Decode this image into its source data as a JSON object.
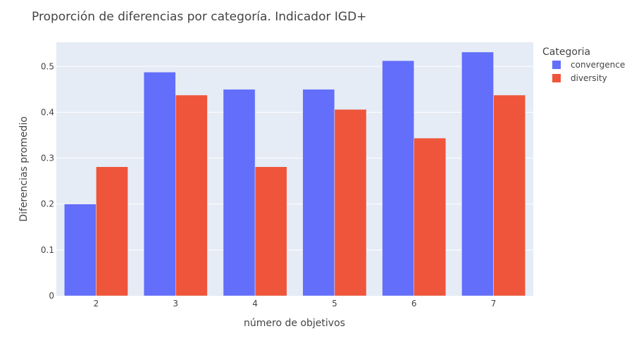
{
  "chart_data": {
    "type": "bar",
    "title": "Proporción de diferencias por categoría. Indicador IGD+",
    "xlabel": "número de objetivos",
    "ylabel": "Diferencias promedio",
    "categories": [
      "2",
      "3",
      "4",
      "5",
      "6",
      "7"
    ],
    "series": [
      {
        "name": "convergence",
        "color": "#636efa",
        "values": [
          0.2,
          0.4875,
          0.45,
          0.45,
          0.5125,
          0.53125
        ]
      },
      {
        "name": "diversity",
        "color": "#ef553b",
        "values": [
          0.28125,
          0.4375,
          0.28125,
          0.40625,
          0.34375,
          0.4375
        ]
      }
    ],
    "ylim": [
      0,
      0.5526
    ],
    "yticks": [
      0,
      0.1,
      0.2,
      0.3,
      0.4,
      0.5
    ],
    "ytick_labels": [
      "0",
      "0.1",
      "0.2",
      "0.3",
      "0.4",
      "0.5"
    ],
    "grid": true,
    "plot_background": "#e5ecf6",
    "legend": {
      "title": "Categoria",
      "placement": "top-right"
    }
  }
}
